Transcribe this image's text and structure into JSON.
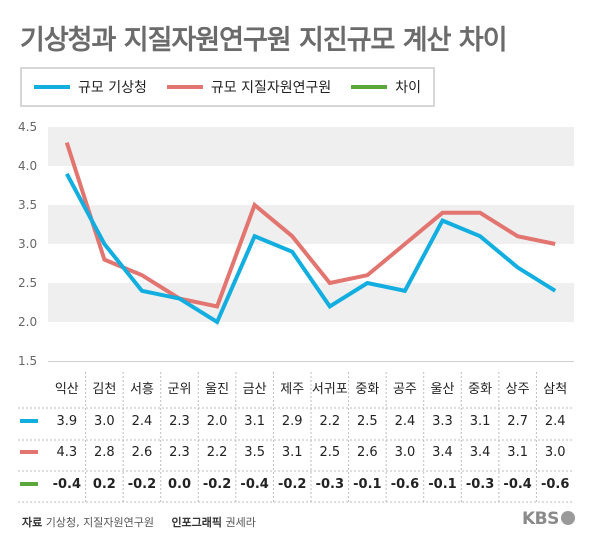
{
  "title": "기상청과 지질자원연구원 지진규모 계산 차이",
  "footer": {
    "source_label": "자료",
    "source_value": "기상청, 지질자원연구원",
    "graphic_label": "인포그래픽",
    "graphic_value": "권세라",
    "logo": "KBS"
  },
  "colors": {
    "kma": "#12aee0",
    "kigam": "#e27570",
    "diff": "#5aa83c"
  },
  "chart_data": {
    "type": "line",
    "title": "",
    "xlabel": "",
    "ylabel": "",
    "ylim": [
      1.5,
      4.5
    ],
    "yticks": [
      "1.5",
      "2.0",
      "2.5",
      "3.0",
      "3.5",
      "4.0",
      "4.5"
    ],
    "grid": "alternating-bands",
    "legend_position": "top-left",
    "categories": [
      "익산",
      "김천",
      "서흥",
      "군위",
      "울진",
      "금산",
      "제주",
      "서귀포",
      "중화",
      "공주",
      "울산",
      "중화",
      "상주",
      "삼척"
    ],
    "series": [
      {
        "name": "규모 기상청",
        "values": [
          3.9,
          3.0,
          2.4,
          2.3,
          2.0,
          3.1,
          2.9,
          2.2,
          2.5,
          2.4,
          3.3,
          3.1,
          2.7,
          2.4
        ]
      },
      {
        "name": "규모 지질자원연구원",
        "values": [
          4.3,
          2.8,
          2.6,
          2.3,
          2.2,
          3.5,
          3.1,
          2.5,
          2.6,
          3.0,
          3.4,
          3.4,
          3.1,
          3.0
        ]
      },
      {
        "name": "차이",
        "values": [
          -0.4,
          0.2,
          -0.2,
          0.0,
          -0.2,
          -0.4,
          -0.2,
          -0.3,
          -0.1,
          -0.6,
          -0.1,
          -0.3,
          -0.4,
          -0.6
        ]
      }
    ],
    "table_rows": [
      [
        "3.9",
        "3.0",
        "2.4",
        "2.3",
        "2.0",
        "3.1",
        "2.9",
        "2.2",
        "2.5",
        "2.4",
        "3.3",
        "3.1",
        "2.7",
        "2.4"
      ],
      [
        "4.3",
        "2.8",
        "2.6",
        "2.3",
        "2.2",
        "3.5",
        "3.1",
        "2.5",
        "2.6",
        "3.0",
        "3.4",
        "3.4",
        "3.1",
        "3.0"
      ],
      [
        "-0.4",
        "0.2",
        "-0.2",
        "0.0",
        "-0.2",
        "-0.4",
        "-0.2",
        "-0.3",
        "-0.1",
        "-0.6",
        "-0.1",
        "-0.3",
        "-0.4",
        "-0.6"
      ]
    ]
  }
}
